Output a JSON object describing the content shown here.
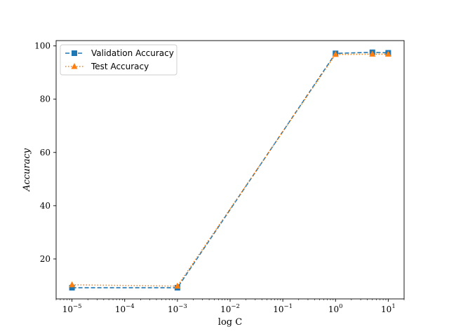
{
  "chart_data": {
    "type": "line",
    "xscale": "log",
    "xlabel": "log C",
    "ylabel": "Accuracy",
    "xlim": [
      5e-06,
      20
    ],
    "ylim": [
      5,
      102
    ],
    "x_ticks": [
      {
        "base": "10",
        "exp": "−5",
        "value": 1e-05
      },
      {
        "base": "10",
        "exp": "−4",
        "value": 0.0001
      },
      {
        "base": "10",
        "exp": "−3",
        "value": 0.001
      },
      {
        "base": "10",
        "exp": "−2",
        "value": 0.01
      },
      {
        "base": "10",
        "exp": "−1",
        "value": 0.1
      },
      {
        "base": "10",
        "exp": "0",
        "value": 1
      },
      {
        "base": "10",
        "exp": "1",
        "value": 10
      }
    ],
    "y_ticks": [
      20,
      40,
      60,
      80,
      100
    ],
    "legend_position": "top-left",
    "series": [
      {
        "name": "Validation Accuracy",
        "color": "#1f77b4",
        "linestyle": "dashed",
        "marker": "square",
        "x": [
          1e-05,
          0.001,
          1,
          5,
          10
        ],
        "y": [
          9.2,
          9.2,
          97.2,
          97.6,
          97.4
        ]
      },
      {
        "name": "Test Accuracy",
        "color": "#ff7f0e",
        "linestyle": "dotted",
        "marker": "triangle",
        "x": [
          1e-05,
          0.001,
          1,
          5,
          10
        ],
        "y": [
          10.3,
          9.8,
          96.8,
          96.9,
          96.9
        ]
      }
    ]
  }
}
